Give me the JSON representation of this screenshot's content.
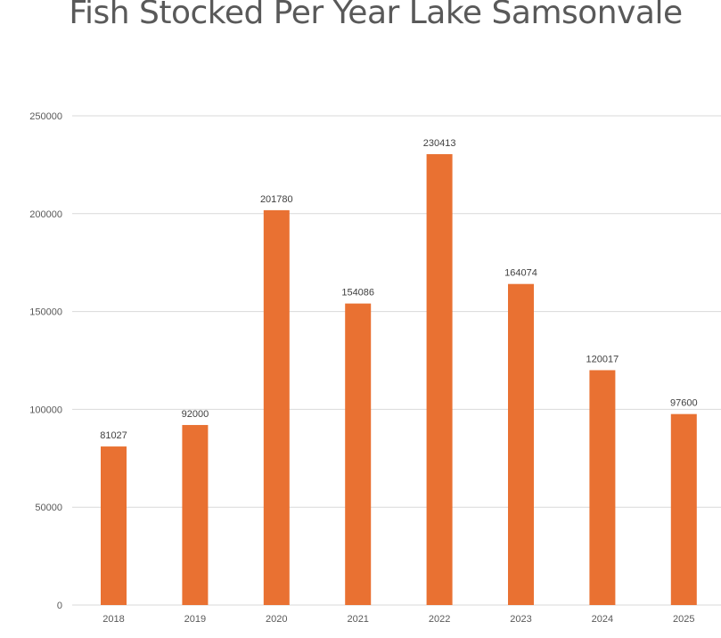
{
  "chart_data": {
    "type": "bar",
    "title": "Fish Stocked Per Year Lake Samsonvale",
    "xlabel": "",
    "ylabel": "",
    "categories": [
      "2018",
      "2019",
      "2020",
      "2021",
      "2022",
      "2023",
      "2024",
      "2025"
    ],
    "values": [
      81027,
      92000,
      201780,
      154086,
      230413,
      164074,
      120017,
      97600
    ],
    "ylim": [
      0,
      250000
    ],
    "yticks": [
      0,
      50000,
      100000,
      150000,
      200000,
      250000
    ],
    "grid": "horizontal",
    "legend": "none",
    "data_labels": true,
    "bar_color": "#E97132",
    "grid_color": "#d9d9d9"
  }
}
